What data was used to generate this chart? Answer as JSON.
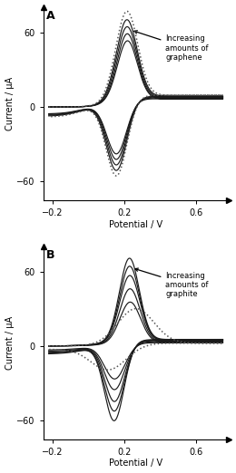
{
  "panel_A_label": "A",
  "panel_B_label": "B",
  "xlabel": "Potential / V",
  "ylabel": "Current / μA",
  "xlim": [
    -0.25,
    0.78
  ],
  "ylim": [
    -75,
    80
  ],
  "xticks": [
    -0.2,
    0.2,
    0.6
  ],
  "yticks": [
    -60,
    0,
    60
  ],
  "annotation_A": "Increasing\namounts of\ngraphene",
  "annotation_B": "Increasing\namounts of\ngraphite",
  "bg_color": "#ffffff",
  "line_color": "#1a1a1a",
  "dotted_color": "#555555",
  "figsize": [
    2.6,
    5.22
  ],
  "dpi": 100
}
